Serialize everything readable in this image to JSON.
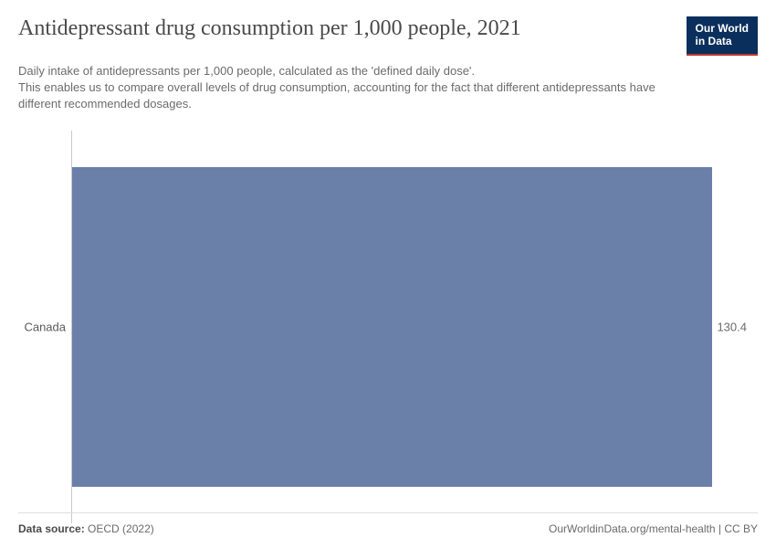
{
  "header": {
    "title": "Antidepressant drug consumption per 1,000 people, 2021",
    "subtitle": "Daily intake of antidepressants per 1,000 people, calculated as the 'defined daily dose'.\nThis enables us to compare overall levels of drug consumption, accounting for the fact that different antidepressants have different recommended dosages.",
    "logo_line1": "Our World",
    "logo_line2": "in Data",
    "logo_bg": "#0a2f5c",
    "logo_border": "#c0392b"
  },
  "chart": {
    "type": "bar-horizontal",
    "categories": [
      "Canada"
    ],
    "values": [
      130.4
    ],
    "xmax": 130.4,
    "bar_color": "#6a80a8",
    "axis_color": "#c9c9c9",
    "label_color": "#5a5a5a",
    "value_color": "#6b6b6b",
    "background": "#ffffff",
    "label_fontsize": 13
  },
  "footer": {
    "source_label": "Data source:",
    "source_value": "OECD (2022)",
    "attribution": "OurWorldinData.org/mental-health | CC BY"
  }
}
